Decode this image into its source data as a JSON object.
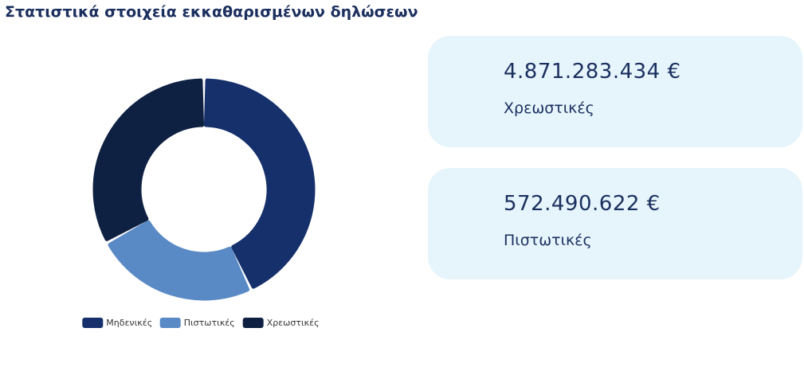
{
  "chart_data": {
    "type": "pie",
    "title": "Στατιστικά στοιχεία εκκαθαρισμένων δηλώσεων",
    "donut": true,
    "categories": [
      "Μηδενικές",
      "Πιστωτικές",
      "Χρεωστικές"
    ],
    "values": [
      43,
      24,
      33
    ],
    "colors": [
      "#15306b",
      "#5a8ac6",
      "#0f2142"
    ]
  },
  "cards": [
    {
      "amount": "4.871.283.434 €",
      "label": "Χρεωστικές"
    },
    {
      "amount": "572.490.622 €",
      "label": "Πιστωτικές"
    }
  ]
}
